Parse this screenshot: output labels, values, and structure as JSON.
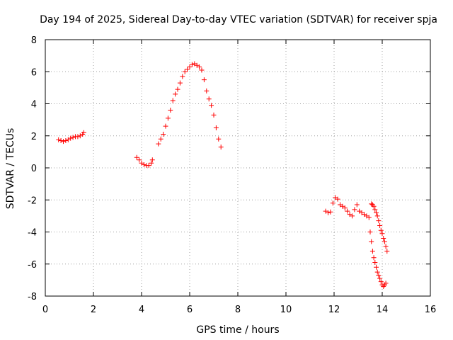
{
  "chart_data": {
    "type": "scatter",
    "title": "Day 194 of 2025, Sidereal Day-to-day VTEC variation (SDTVAR) for receiver spja",
    "xlabel": "GPS time / hours",
    "ylabel": "SDTVAR / TECUs",
    "xlim": [
      0,
      16
    ],
    "ylim": [
      -8,
      8
    ],
    "xticks": [
      "0",
      "2",
      "4",
      "6",
      "8",
      "10",
      "12",
      "14",
      "16"
    ],
    "yticks": [
      "-8",
      "-6",
      "-4",
      "-2",
      "0",
      "2",
      "4",
      "6",
      "8"
    ],
    "grid": true,
    "marker": "plus",
    "color": "#ff0000",
    "series": [
      {
        "x": [
          0.55,
          0.65,
          0.75,
          0.85,
          0.95,
          1.05,
          1.15,
          1.25,
          1.35,
          1.45,
          1.55,
          1.6
        ],
        "y": [
          1.75,
          1.7,
          1.65,
          1.7,
          1.75,
          1.85,
          1.9,
          1.95,
          1.95,
          2.0,
          2.1,
          2.2
        ]
      },
      {
        "x": [
          3.8,
          3.9,
          4.0,
          4.1,
          4.2,
          4.3,
          4.4,
          4.45
        ],
        "y": [
          0.65,
          0.5,
          0.3,
          0.2,
          0.15,
          0.15,
          0.3,
          0.5
        ]
      },
      {
        "x": [
          4.7,
          4.8,
          4.9,
          5.0,
          5.1,
          5.2,
          5.3,
          5.4,
          5.5,
          5.6,
          5.7,
          5.8,
          5.9,
          6.0,
          6.1,
          6.2,
          6.3,
          6.4,
          6.5,
          6.6,
          6.7,
          6.8,
          6.9,
          7.0,
          7.1,
          7.2,
          7.3
        ],
        "y": [
          1.5,
          1.8,
          2.1,
          2.6,
          3.1,
          3.6,
          4.2,
          4.6,
          4.9,
          5.3,
          5.7,
          6.0,
          6.15,
          6.3,
          6.45,
          6.5,
          6.4,
          6.3,
          6.1,
          5.5,
          4.8,
          4.3,
          3.9,
          3.3,
          2.5,
          1.8,
          1.3
        ]
      },
      {
        "x": [
          11.65,
          11.75,
          11.85,
          11.95,
          12.05,
          12.15,
          12.25,
          12.35,
          12.45,
          12.55,
          12.65,
          12.75,
          12.85,
          12.95,
          13.05,
          13.15,
          13.25,
          13.35,
          13.45
        ],
        "y": [
          -2.7,
          -2.8,
          -2.75,
          -2.2,
          -1.85,
          -1.95,
          -2.3,
          -2.4,
          -2.5,
          -2.7,
          -2.9,
          -3.0,
          -2.6,
          -2.3,
          -2.7,
          -2.8,
          -2.9,
          -3.0,
          -3.1
        ]
      },
      {
        "x": [
          13.5,
          13.55,
          13.6,
          13.65,
          13.7,
          13.75,
          13.8,
          13.85,
          13.9,
          13.95,
          14.0,
          14.05,
          14.1,
          14.15
        ],
        "y": [
          -4.0,
          -4.6,
          -5.2,
          -5.6,
          -5.9,
          -6.2,
          -6.5,
          -6.7,
          -6.9,
          -7.1,
          -7.3,
          -7.4,
          -7.3,
          -7.2
        ]
      },
      {
        "x": [
          13.55,
          13.6,
          13.65,
          13.7,
          13.75,
          13.8,
          13.85,
          13.9,
          13.95,
          14.0,
          14.05,
          14.1,
          14.15,
          14.2
        ],
        "y": [
          -2.25,
          -2.3,
          -2.4,
          -2.6,
          -2.8,
          -3.0,
          -3.3,
          -3.6,
          -3.9,
          -4.1,
          -4.4,
          -4.6,
          -4.9,
          -5.2
        ]
      }
    ]
  }
}
